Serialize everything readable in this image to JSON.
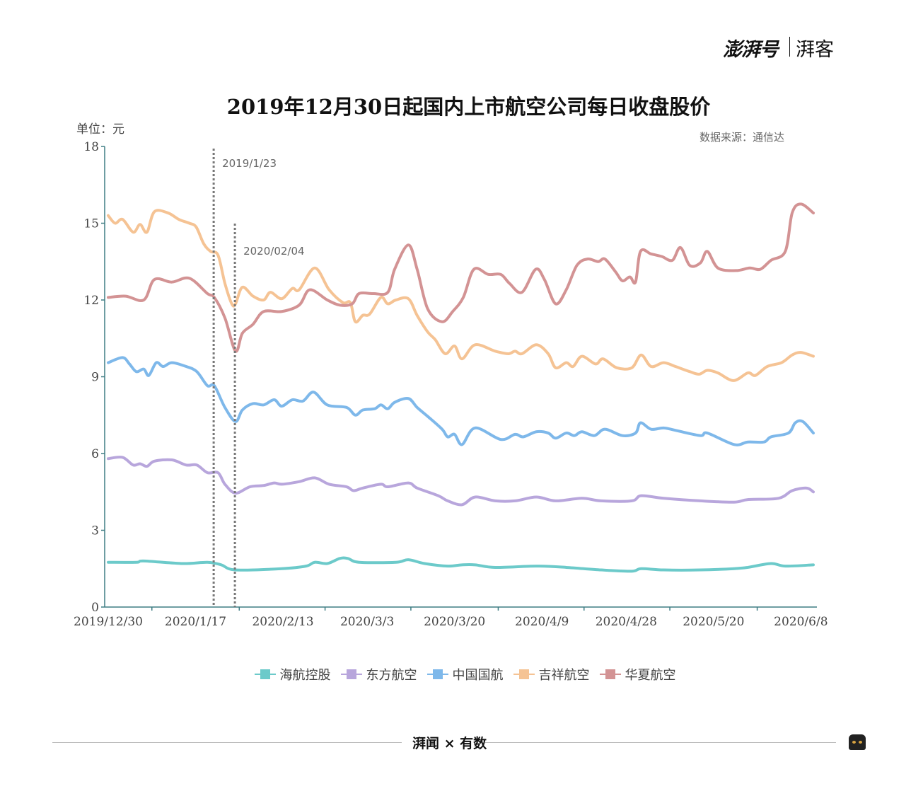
{
  "header": {
    "brand": "澎湃号",
    "channel": "湃客"
  },
  "footer": {
    "brand": "湃闻 × 有数"
  },
  "chart_data": {
    "type": "line",
    "title": "2019年12月30日起国内上市航空公司每日收盘股价",
    "ylabel": "单位：元",
    "source": "数据来源：通信达",
    "xlabel": "",
    "x_unit": "trading days since 2019/12/30",
    "xlim": [
      0,
      113
    ],
    "ylim": [
      0,
      18
    ],
    "yticks": [
      "0",
      "3",
      "6",
      "9",
      "12",
      "15",
      "18"
    ],
    "xticks": [
      {
        "day": 0,
        "label": "2019/12/30"
      },
      {
        "day": 14,
        "label": "2020/1/17"
      },
      {
        "day": 28,
        "label": "2020/2/13"
      },
      {
        "day": 41.5,
        "label": "2020/3/3"
      },
      {
        "day": 55.5,
        "label": "2020/3/20"
      },
      {
        "day": 69.5,
        "label": "2020/4/9"
      },
      {
        "day": 83,
        "label": "2020/4/28"
      },
      {
        "day": 97,
        "label": "2020/5/20"
      },
      {
        "day": 111,
        "label": "2020/6/8"
      }
    ],
    "annotations": [
      {
        "day": 16.9,
        "label": "2019/1/23"
      },
      {
        "day": 20.3,
        "label": "2020/02/04"
      }
    ],
    "legend_position": "bottom",
    "series": [
      {
        "name": "海航控股",
        "color": "#6ccaca",
        "points": [
          [
            0,
            1.75
          ],
          [
            4.5,
            1.75
          ],
          [
            5.7,
            1.8
          ],
          [
            11.9,
            1.7
          ],
          [
            15.9,
            1.75
          ],
          [
            18.1,
            1.65
          ],
          [
            20.4,
            1.45
          ],
          [
            27.8,
            1.5
          ],
          [
            31.7,
            1.6
          ],
          [
            33.1,
            1.75
          ],
          [
            35.1,
            1.7
          ],
          [
            37.1,
            1.9
          ],
          [
            38.4,
            1.9
          ],
          [
            40.2,
            1.75
          ],
          [
            46.1,
            1.75
          ],
          [
            48.1,
            1.85
          ],
          [
            50.7,
            1.7
          ],
          [
            54.4,
            1.6
          ],
          [
            56.7,
            1.65
          ],
          [
            58.8,
            1.65
          ],
          [
            62,
            1.55
          ],
          [
            68.6,
            1.6
          ],
          [
            73.4,
            1.55
          ],
          [
            79,
            1.45
          ],
          [
            83.9,
            1.4
          ],
          [
            85.4,
            1.5
          ],
          [
            89,
            1.45
          ],
          [
            94.9,
            1.45
          ],
          [
            100.3,
            1.5
          ],
          [
            102.5,
            1.55
          ],
          [
            106.2,
            1.7
          ],
          [
            108.5,
            1.6
          ],
          [
            113,
            1.65
          ]
        ]
      },
      {
        "name": "东方航空",
        "color": "#b8a6dc",
        "points": [
          [
            0,
            5.8
          ],
          [
            2.3,
            5.85
          ],
          [
            4,
            5.55
          ],
          [
            5.1,
            5.6
          ],
          [
            6.2,
            5.5
          ],
          [
            7.4,
            5.7
          ],
          [
            10.2,
            5.75
          ],
          [
            12.5,
            5.55
          ],
          [
            14.2,
            5.55
          ],
          [
            15.9,
            5.25
          ],
          [
            17.6,
            5.25
          ],
          [
            18.7,
            4.8
          ],
          [
            20.4,
            4.45
          ],
          [
            22.7,
            4.7
          ],
          [
            24.9,
            4.75
          ],
          [
            26.6,
            4.85
          ],
          [
            27.8,
            4.8
          ],
          [
            30.6,
            4.9
          ],
          [
            33.1,
            5.05
          ],
          [
            35.4,
            4.8
          ],
          [
            38.2,
            4.7
          ],
          [
            39.3,
            4.55
          ],
          [
            40.8,
            4.65
          ],
          [
            43.7,
            4.8
          ],
          [
            44.8,
            4.7
          ],
          [
            48.1,
            4.85
          ],
          [
            49.5,
            4.65
          ],
          [
            52.9,
            4.35
          ],
          [
            54.4,
            4.15
          ],
          [
            56.7,
            4.0
          ],
          [
            58.8,
            4.3
          ],
          [
            62,
            4.15
          ],
          [
            65.2,
            4.15
          ],
          [
            68.6,
            4.3
          ],
          [
            71.7,
            4.15
          ],
          [
            75.9,
            4.25
          ],
          [
            79,
            4.15
          ],
          [
            83.9,
            4.15
          ],
          [
            85.4,
            4.35
          ],
          [
            89,
            4.25
          ],
          [
            94.9,
            4.15
          ],
          [
            100.3,
            4.1
          ],
          [
            102.5,
            4.2
          ],
          [
            107.4,
            4.25
          ],
          [
            109.6,
            4.55
          ],
          [
            111.9,
            4.65
          ],
          [
            113,
            4.5
          ]
        ]
      },
      {
        "name": "中国国航",
        "color": "#7eb8ea",
        "points": [
          [
            0,
            9.55
          ],
          [
            2.3,
            9.75
          ],
          [
            3.4,
            9.5
          ],
          [
            4.5,
            9.2
          ],
          [
            5.7,
            9.3
          ],
          [
            6.5,
            9.05
          ],
          [
            7.7,
            9.55
          ],
          [
            8.8,
            9.4
          ],
          [
            10.2,
            9.55
          ],
          [
            12.5,
            9.4
          ],
          [
            14.2,
            9.2
          ],
          [
            15.9,
            8.65
          ],
          [
            17,
            8.65
          ],
          [
            18.7,
            7.8
          ],
          [
            20.4,
            7.25
          ],
          [
            21.5,
            7.7
          ],
          [
            23.2,
            7.95
          ],
          [
            24.9,
            7.9
          ],
          [
            26.6,
            8.1
          ],
          [
            27.8,
            7.85
          ],
          [
            29.5,
            8.1
          ],
          [
            31.2,
            8.05
          ],
          [
            32.9,
            8.4
          ],
          [
            35.1,
            7.9
          ],
          [
            38.2,
            7.8
          ],
          [
            39.6,
            7.5
          ],
          [
            40.8,
            7.7
          ],
          [
            42.7,
            7.75
          ],
          [
            43.7,
            7.9
          ],
          [
            44.8,
            7.75
          ],
          [
            45.9,
            8.0
          ],
          [
            48.1,
            8.15
          ],
          [
            49.5,
            7.8
          ],
          [
            51.2,
            7.45
          ],
          [
            53.5,
            6.95
          ],
          [
            54.4,
            6.65
          ],
          [
            55.5,
            6.75
          ],
          [
            56.7,
            6.35
          ],
          [
            58.8,
            7.0
          ],
          [
            62.9,
            6.55
          ],
          [
            65.2,
            6.75
          ],
          [
            66.5,
            6.65
          ],
          [
            68.6,
            6.85
          ],
          [
            70.5,
            6.8
          ],
          [
            71.7,
            6.6
          ],
          [
            73.4,
            6.8
          ],
          [
            74.7,
            6.7
          ],
          [
            75.9,
            6.85
          ],
          [
            77.9,
            6.7
          ],
          [
            79.6,
            6.95
          ],
          [
            82.4,
            6.7
          ],
          [
            84.5,
            6.8
          ],
          [
            85.3,
            7.2
          ],
          [
            87,
            6.95
          ],
          [
            89,
            7.0
          ],
          [
            91,
            6.9
          ],
          [
            94.9,
            6.7
          ],
          [
            96,
            6.8
          ],
          [
            100.3,
            6.35
          ],
          [
            102.5,
            6.45
          ],
          [
            105.1,
            6.45
          ],
          [
            106.2,
            6.65
          ],
          [
            109,
            6.8
          ],
          [
            110.1,
            7.2
          ],
          [
            111.3,
            7.25
          ],
          [
            113,
            6.8
          ]
        ]
      },
      {
        "name": "吉祥航空",
        "color": "#f5c394",
        "points": [
          [
            0,
            15.3
          ],
          [
            1.1,
            15.0
          ],
          [
            2.3,
            15.15
          ],
          [
            4,
            14.65
          ],
          [
            5.1,
            14.95
          ],
          [
            6.2,
            14.65
          ],
          [
            7.4,
            15.45
          ],
          [
            9.6,
            15.4
          ],
          [
            11.3,
            15.15
          ],
          [
            13,
            15.0
          ],
          [
            14.1,
            14.85
          ],
          [
            15.3,
            14.2
          ],
          [
            16.4,
            13.9
          ],
          [
            17.6,
            13.75
          ],
          [
            18.7,
            12.65
          ],
          [
            19.8,
            11.85
          ],
          [
            20.4,
            11.85
          ],
          [
            21.5,
            12.5
          ],
          [
            23.2,
            12.15
          ],
          [
            24.9,
            12.0
          ],
          [
            26,
            12.3
          ],
          [
            27.8,
            12.05
          ],
          [
            29.5,
            12.45
          ],
          [
            30.6,
            12.4
          ],
          [
            33.1,
            13.25
          ],
          [
            35.4,
            12.4
          ],
          [
            37.6,
            11.9
          ],
          [
            38.8,
            11.9
          ],
          [
            39.6,
            11.15
          ],
          [
            40.8,
            11.4
          ],
          [
            41.9,
            11.45
          ],
          [
            43.7,
            12.1
          ],
          [
            44.8,
            11.85
          ],
          [
            46.1,
            12.0
          ],
          [
            48.1,
            12.05
          ],
          [
            49.5,
            11.4
          ],
          [
            51.2,
            10.75
          ],
          [
            52.4,
            10.45
          ],
          [
            54,
            9.9
          ],
          [
            55.5,
            10.2
          ],
          [
            56.7,
            9.7
          ],
          [
            58.8,
            10.25
          ],
          [
            62,
            10.0
          ],
          [
            64.1,
            9.9
          ],
          [
            65.2,
            10.0
          ],
          [
            66.3,
            9.9
          ],
          [
            68.6,
            10.25
          ],
          [
            70.5,
            9.9
          ],
          [
            71.7,
            9.35
          ],
          [
            73.4,
            9.55
          ],
          [
            74.5,
            9.4
          ],
          [
            75.9,
            9.8
          ],
          [
            78.1,
            9.5
          ],
          [
            79.3,
            9.7
          ],
          [
            81.5,
            9.35
          ],
          [
            83.9,
            9.35
          ],
          [
            85.4,
            9.85
          ],
          [
            87,
            9.4
          ],
          [
            89,
            9.55
          ],
          [
            90.9,
            9.4
          ],
          [
            93.2,
            9.2
          ],
          [
            94.7,
            9.1
          ],
          [
            96,
            9.25
          ],
          [
            97.7,
            9.15
          ],
          [
            100.2,
            8.85
          ],
          [
            102.5,
            9.15
          ],
          [
            103.7,
            9.05
          ],
          [
            105.6,
            9.4
          ],
          [
            107.9,
            9.55
          ],
          [
            109.6,
            9.85
          ],
          [
            111,
            9.95
          ],
          [
            113,
            9.8
          ]
        ]
      },
      {
        "name": "华夏航空",
        "color": "#d39394",
        "points": [
          [
            0,
            12.1
          ],
          [
            2.8,
            12.15
          ],
          [
            5.7,
            12.0
          ],
          [
            7.4,
            12.8
          ],
          [
            10.2,
            12.7
          ],
          [
            13,
            12.85
          ],
          [
            15.9,
            12.25
          ],
          [
            17,
            12.1
          ],
          [
            18.7,
            11.3
          ],
          [
            20.4,
            10.0
          ],
          [
            21.5,
            10.7
          ],
          [
            23.2,
            11.05
          ],
          [
            24.9,
            11.55
          ],
          [
            27.8,
            11.55
          ],
          [
            30.6,
            11.8
          ],
          [
            32.3,
            12.4
          ],
          [
            35.1,
            12.0
          ],
          [
            37.1,
            11.8
          ],
          [
            39.1,
            11.85
          ],
          [
            40.2,
            12.25
          ],
          [
            42.5,
            12.25
          ],
          [
            44.8,
            12.3
          ],
          [
            45.9,
            13.2
          ],
          [
            48.1,
            14.15
          ],
          [
            49.5,
            13.2
          ],
          [
            51.2,
            11.65
          ],
          [
            53.5,
            11.15
          ],
          [
            55.2,
            11.55
          ],
          [
            56.9,
            12.1
          ],
          [
            58.6,
            13.2
          ],
          [
            60.9,
            13.0
          ],
          [
            62.9,
            13.0
          ],
          [
            64.3,
            12.65
          ],
          [
            66.3,
            12.3
          ],
          [
            68.5,
            13.2
          ],
          [
            69.9,
            12.8
          ],
          [
            71.7,
            11.85
          ],
          [
            73.4,
            12.4
          ],
          [
            75.1,
            13.35
          ],
          [
            76.8,
            13.6
          ],
          [
            78.5,
            13.5
          ],
          [
            79.6,
            13.6
          ],
          [
            81.3,
            13.1
          ],
          [
            82.4,
            12.75
          ],
          [
            83.6,
            12.9
          ],
          [
            84.5,
            12.7
          ],
          [
            85.3,
            13.9
          ],
          [
            87,
            13.8
          ],
          [
            88.7,
            13.7
          ],
          [
            90.4,
            13.55
          ],
          [
            91.7,
            14.05
          ],
          [
            93.2,
            13.35
          ],
          [
            94.9,
            13.45
          ],
          [
            96,
            13.9
          ],
          [
            97.7,
            13.25
          ],
          [
            100.6,
            13.15
          ],
          [
            102.8,
            13.25
          ],
          [
            104.5,
            13.2
          ],
          [
            106.2,
            13.55
          ],
          [
            108.5,
            13.9
          ],
          [
            109.6,
            15.4
          ],
          [
            111,
            15.75
          ],
          [
            113,
            15.4
          ]
        ]
      }
    ]
  }
}
